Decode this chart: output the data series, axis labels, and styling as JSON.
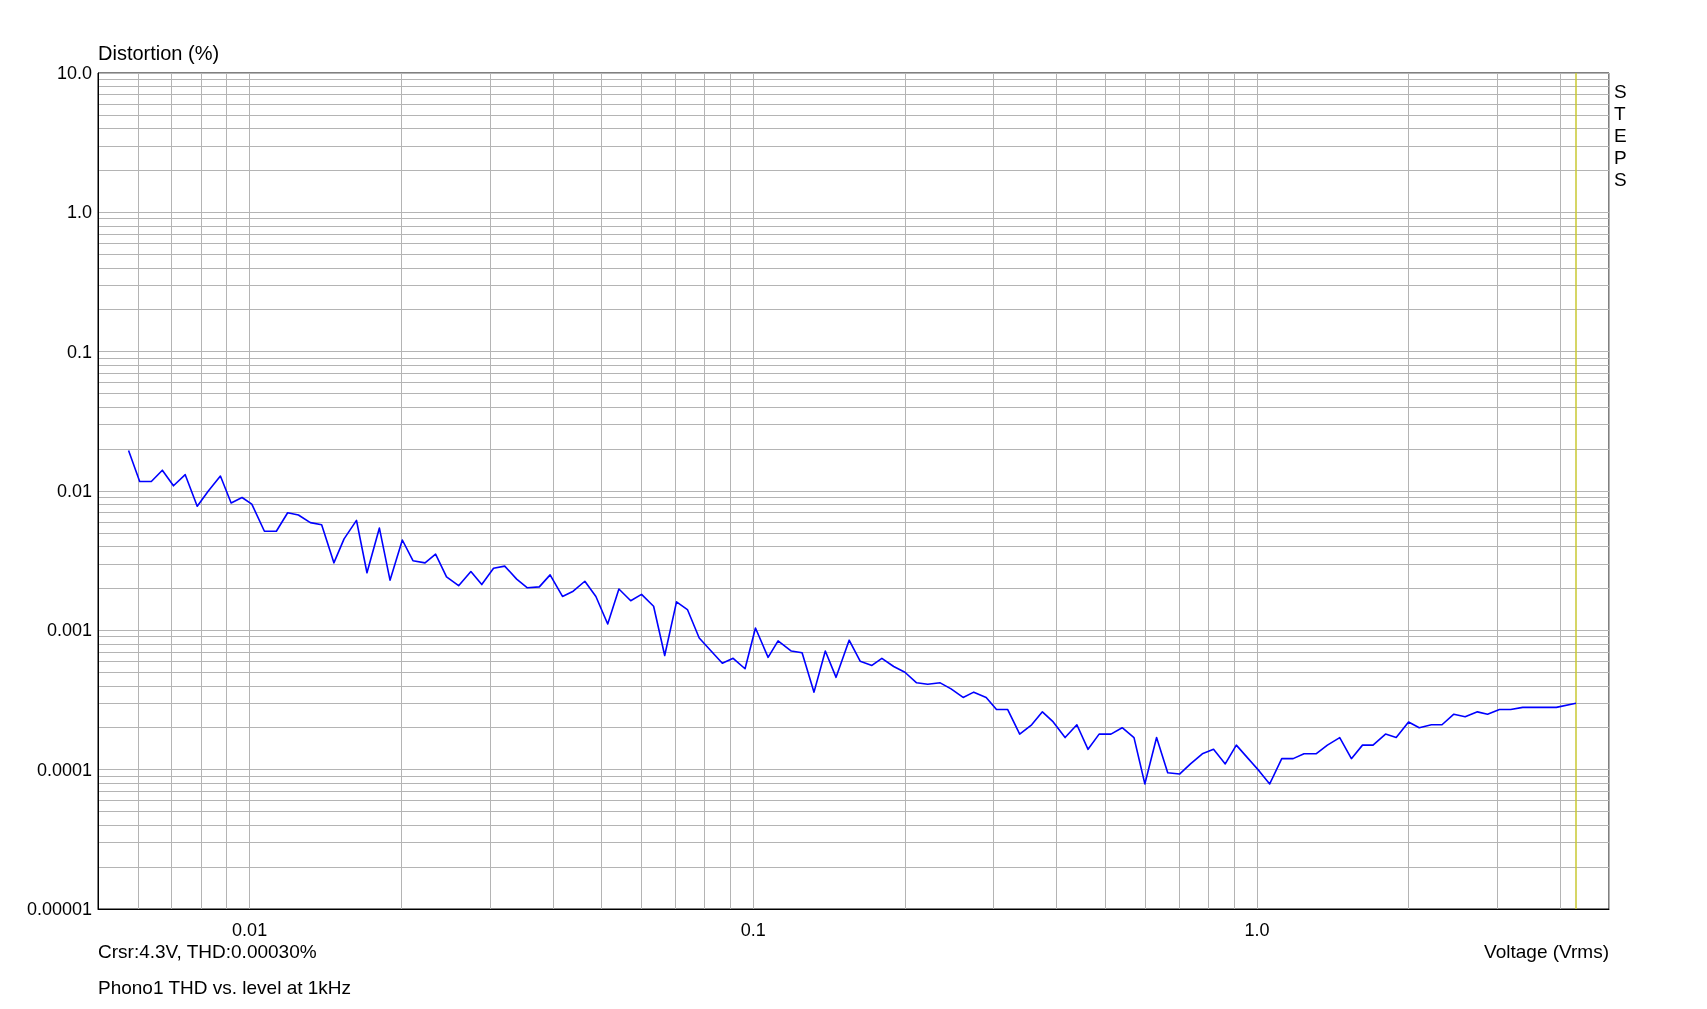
{
  "chart_data": {
    "type": "line",
    "xlabel": "Voltage (Vrms)",
    "ylabel": "Distortion (%)",
    "log": "xy",
    "grid": true,
    "marker": "none",
    "line_style": "solid",
    "xlim": [
      0.005,
      5
    ],
    "ylim": [
      1e-05,
      10
    ],
    "xticks": [
      {
        "value": 0.005,
        "label": null
      },
      {
        "value": 0.006,
        "label": null
      },
      {
        "value": 0.007,
        "label": null
      },
      {
        "value": 0.008,
        "label": null
      },
      {
        "value": 0.009,
        "label": null
      },
      0.01,
      {
        "value": 0.02,
        "label": null
      },
      {
        "value": 0.03,
        "label": null
      },
      {
        "value": 0.04,
        "label": null
      },
      {
        "value": 0.05,
        "label": null
      },
      {
        "value": 0.06,
        "label": null
      },
      {
        "value": 0.07,
        "label": null
      },
      {
        "value": 0.08,
        "label": null
      },
      {
        "value": 0.09,
        "label": null
      },
      0.1,
      {
        "value": 0.2,
        "label": null
      },
      {
        "value": 0.3,
        "label": null
      },
      {
        "value": 0.4,
        "label": null
      },
      {
        "value": 0.5,
        "label": null
      },
      {
        "value": 0.6,
        "label": null
      },
      {
        "value": 0.7,
        "label": null
      },
      {
        "value": 0.8,
        "label": null
      },
      {
        "value": 0.9,
        "label": null
      },
      {
        "value": 1,
        "label": "1.0"
      },
      {
        "value": 2,
        "label": null
      },
      {
        "value": 3,
        "label": null
      },
      {
        "value": 4,
        "label": null
      },
      {
        "value": 5,
        "label": null
      }
    ],
    "yticks": [
      {
        "value": 1e-05,
        "label": "0.00001"
      },
      {
        "value": 2e-05,
        "label": null
      },
      {
        "value": 3e-05,
        "label": null
      },
      {
        "value": 4e-05,
        "label": null
      },
      {
        "value": 5e-05,
        "label": null
      },
      {
        "value": 6e-05,
        "label": null
      },
      {
        "value": 7e-05,
        "label": null
      },
      {
        "value": 8e-05,
        "label": null
      },
      {
        "value": 9e-05,
        "label": null
      },
      0.0001,
      {
        "value": 0.0002,
        "label": null
      },
      {
        "value": 0.0003,
        "label": null
      },
      {
        "value": 0.0004,
        "label": null
      },
      {
        "value": 0.0005,
        "label": null
      },
      {
        "value": 0.0006,
        "label": null
      },
      {
        "value": 0.0007,
        "label": null
      },
      {
        "value": 0.0008,
        "label": null
      },
      {
        "value": 0.0009,
        "label": null
      },
      0.001,
      {
        "value": 0.002,
        "label": null
      },
      {
        "value": 0.003,
        "label": null
      },
      {
        "value": 0.004,
        "label": null
      },
      {
        "value": 0.005,
        "label": null
      },
      {
        "value": 0.006,
        "label": null
      },
      {
        "value": 0.007,
        "label": null
      },
      {
        "value": 0.008,
        "label": null
      },
      {
        "value": 0.009,
        "label": null
      },
      0.01,
      {
        "value": 0.02,
        "label": null
      },
      {
        "value": 0.03,
        "label": null
      },
      {
        "value": 0.04,
        "label": null
      },
      {
        "value": 0.05,
        "label": null
      },
      {
        "value": 0.06,
        "label": null
      },
      {
        "value": 0.07,
        "label": null
      },
      {
        "value": 0.08,
        "label": null
      },
      {
        "value": 0.09,
        "label": null
      },
      0.1,
      {
        "value": 0.2,
        "label": null
      },
      {
        "value": 0.3,
        "label": null
      },
      {
        "value": 0.4,
        "label": null
      },
      {
        "value": 0.5,
        "label": null
      },
      {
        "value": 0.6,
        "label": null
      },
      {
        "value": 0.7,
        "label": null
      },
      {
        "value": 0.8,
        "label": null
      },
      {
        "value": 0.9,
        "label": null
      },
      {
        "value": 1,
        "label": "1.0"
      },
      {
        "value": 2,
        "label": null
      },
      {
        "value": 3,
        "label": null
      },
      {
        "value": 4,
        "label": null
      },
      {
        "value": 5,
        "label": null
      },
      {
        "value": 6,
        "label": null
      },
      {
        "value": 7,
        "label": null
      },
      {
        "value": 8,
        "label": null
      },
      {
        "value": 9,
        "label": null
      },
      {
        "value": 10,
        "label": "10.0"
      }
    ],
    "ref_lines": [
      {
        "axis": "x",
        "value": 4.3,
        "color": "#c8c832"
      }
    ],
    "annotations": [
      "Crsr:4.3V, THD:0.00030%",
      "Phono1 THD vs. level at 1kHz",
      "STEPS"
    ],
    "series": [
      {
        "color": "#0000ff",
        "x": [
          0.00575,
          0.00605,
          0.00638,
          0.00671,
          0.00706,
          0.00745,
          0.00787,
          0.00828,
          0.00875,
          0.00919,
          0.00966,
          0.0101,
          0.0107,
          0.0113,
          0.0119,
          0.0125,
          0.0132,
          0.0139,
          0.0147,
          0.0154,
          0.0163,
          0.0171,
          0.0181,
          0.019,
          0.0201,
          0.0211,
          0.0223,
          0.0234,
          0.0246,
          0.026,
          0.0275,
          0.0289,
          0.0305,
          0.0321,
          0.0339,
          0.0356,
          0.0376,
          0.0395,
          0.0418,
          0.0439,
          0.0463,
          0.0487,
          0.0514,
          0.0541,
          0.0571,
          0.06,
          0.0634,
          0.0667,
          0.0704,
          0.074,
          0.0781,
          0.0822,
          0.0868,
          0.0912,
          0.0963,
          0.101,
          0.107,
          0.112,
          0.119,
          0.125,
          0.132,
          0.139,
          0.146,
          0.155,
          0.163,
          0.172,
          0.18,
          0.19,
          0.2,
          0.211,
          0.222,
          0.235,
          0.247,
          0.261,
          0.274,
          0.29,
          0.304,
          0.32,
          0.338,
          0.357,
          0.375,
          0.394,
          0.416,
          0.439,
          0.462,
          0.486,
          0.513,
          0.54,
          0.57,
          0.599,
          0.632,
          0.665,
          0.702,
          0.738,
          0.779,
          0.82,
          0.865,
          0.91,
          0.961,
          1.01,
          1.06,
          1.12,
          1.18,
          1.24,
          1.31,
          1.38,
          1.46,
          1.54,
          1.62,
          1.7,
          1.8,
          1.89,
          2.0,
          2.1,
          2.22,
          2.33,
          2.46,
          2.59,
          2.74,
          2.87,
          3.03,
          3.19,
          3.37,
          3.54,
          3.74,
          3.93,
          4.3
        ],
        "values": [
          0.0195,
          0.0117,
          0.0117,
          0.0141,
          0.0109,
          0.0131,
          0.00778,
          0.01,
          0.0128,
          0.0082,
          0.00898,
          0.00806,
          0.00514,
          0.00514,
          0.00698,
          0.00673,
          0.00593,
          0.00573,
          0.00305,
          0.00453,
          0.00615,
          0.00259,
          0.00542,
          0.00229,
          0.00445,
          0.00316,
          0.00305,
          0.00352,
          0.00242,
          0.00209,
          0.00264,
          0.00213,
          0.00279,
          0.00289,
          0.00233,
          0.00202,
          0.00205,
          0.0025,
          0.00175,
          0.00191,
          0.00225,
          0.00175,
          0.00111,
          0.00198,
          0.00163,
          0.00181,
          0.00149,
          0.00066,
          0.0016,
          0.00141,
          0.00088,
          0.00072,
          0.00058,
          0.00063,
          0.00053,
          0.00104,
          0.00064,
          0.00084,
          0.00071,
          0.00069,
          0.00036,
          0.00071,
          0.00046,
          0.00085,
          0.0006,
          0.00056,
          0.00063,
          0.00055,
          0.0005,
          0.00042,
          0.00041,
          0.00042,
          0.00038,
          0.00033,
          0.00036,
          0.00033,
          0.00027,
          0.00027,
          0.00018,
          0.00021,
          0.00026,
          0.00022,
          0.00017,
          0.00021,
          0.00014,
          0.00018,
          0.00018,
          0.0002,
          0.00017,
          7.9e-05,
          0.00017,
          9.5e-05,
          9.3e-05,
          0.00011,
          0.00013,
          0.00014,
          0.00011,
          0.00015,
          0.00012,
          9.8e-05,
          7.9e-05,
          0.00012,
          0.00012,
          0.00013,
          0.00013,
          0.00015,
          0.00017,
          0.00012,
          0.00015,
          0.00015,
          0.00018,
          0.00017,
          0.00022,
          0.0002,
          0.00021,
          0.00021,
          0.00025,
          0.00024,
          0.00026,
          0.00025,
          0.00027,
          0.00027,
          0.00028,
          0.00028,
          0.00028,
          0.00028,
          0.0003
        ]
      }
    ]
  }
}
